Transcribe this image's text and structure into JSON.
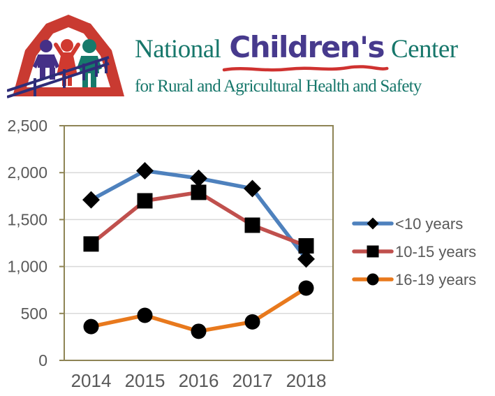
{
  "logo": {
    "title_part1": "National",
    "title_highlight": "Children's",
    "title_part2": "Center",
    "subtitle": "for Rural and Agricultural Health and Safety",
    "colors": {
      "teal": "#17776b",
      "purple": "#473a8d",
      "underline_red": "#cf3230",
      "barn_red": "#c93a31",
      "fence_navy": "#2e2d78"
    }
  },
  "chart_data": {
    "type": "line",
    "title": "",
    "xlabel": "",
    "ylabel": "",
    "categories": [
      "2014",
      "2015",
      "2016",
      "2017",
      "2018"
    ],
    "series": [
      {
        "name": "<10 years",
        "color": "#4e81bd",
        "marker": "diamond",
        "values": [
          1710,
          2020,
          1940,
          1830,
          1080
        ]
      },
      {
        "name": "10-15 years",
        "color": "#c0504d",
        "marker": "square",
        "values": [
          1240,
          1700,
          1790,
          1440,
          1220
        ]
      },
      {
        "name": "16-19 years",
        "color": "#e8791d",
        "marker": "circle",
        "values": [
          360,
          480,
          310,
          410,
          770
        ]
      }
    ],
    "ylim": [
      0,
      2500
    ],
    "ytick_step": 500,
    "ytick_labels": [
      "0",
      "500",
      "1,000",
      "1,500",
      "2,000",
      "2,500"
    ],
    "grid": true,
    "legend_position": "right",
    "marker_color": "#000000",
    "plot_border_color": "#8e8455",
    "gridline_color": "#d9d9d9",
    "axis_label_color": "#595959",
    "legend_label_color": "#595959"
  }
}
